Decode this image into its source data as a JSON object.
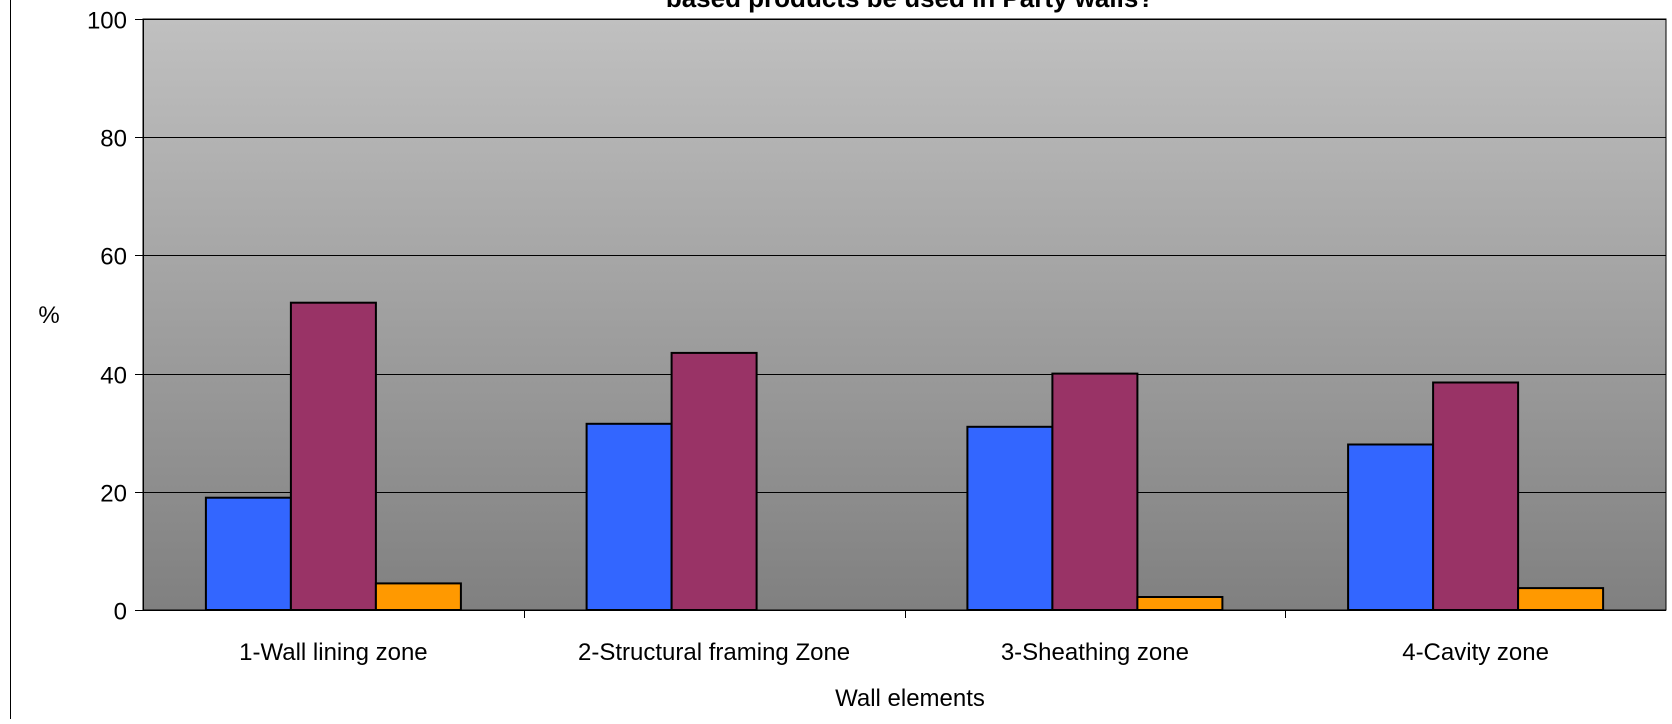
{
  "chart_data": {
    "type": "bar",
    "title": "based products be used in Party walls?",
    "xlabel": "Wall elements",
    "ylabel": "%",
    "ylim": [
      0,
      100
    ],
    "yticks": [
      0,
      20,
      40,
      60,
      80,
      100
    ],
    "grid": true,
    "legend": "none",
    "categories": [
      "1-Wall lining zone",
      "2-Structural framing Zone",
      "3-Sheathing zone",
      "4-Cavity zone"
    ],
    "series": [
      {
        "color": "#3366FF",
        "values": [
          19,
          31.5,
          31,
          28
        ]
      },
      {
        "color": "#993366",
        "values": [
          52,
          43.5,
          40,
          38.5
        ]
      },
      {
        "color": "#FF9900",
        "values": [
          4.5,
          0,
          2.2,
          3.7
        ]
      }
    ],
    "colors": {
      "plot_gradient_top": "#c0c0c0",
      "plot_gradient_bottom": "#808080",
      "gridline": "#000000",
      "axis": "#000000",
      "text": "#000000"
    }
  }
}
